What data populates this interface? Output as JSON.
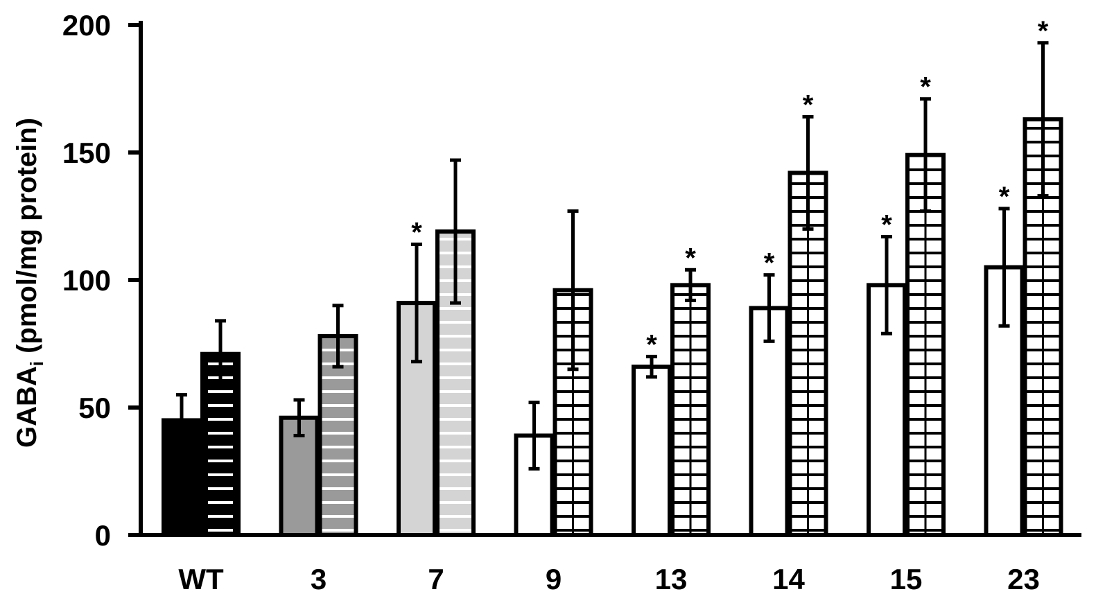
{
  "chart_data": {
    "type": "bar",
    "xlabel": "",
    "ylabel": {
      "main": "GABA",
      "subscript": "i",
      "unit": " (pmol/mg protein)"
    },
    "ylim": [
      0,
      200
    ],
    "yticks": [
      0,
      50,
      100,
      150,
      200
    ],
    "grid": false,
    "categories": [
      "WT",
      "3",
      "7",
      "9",
      "13",
      "14",
      "15",
      "23"
    ],
    "fills": [
      "#000000",
      "#9a9a9a",
      "#d4d4d4",
      "#ffffff",
      "#ffffff",
      "#ffffff",
      "#ffffff",
      "#ffffff"
    ],
    "series": [
      {
        "values": [
          45,
          46,
          91,
          39,
          66,
          89,
          98,
          105
        ],
        "errors": [
          10,
          7,
          23,
          13,
          4,
          13,
          19,
          23
        ],
        "significant": [
          false,
          false,
          true,
          false,
          true,
          true,
          true,
          true
        ]
      },
      {
        "values": [
          71,
          78,
          119,
          96,
          98,
          142,
          149,
          163
        ],
        "errors": [
          13,
          12,
          28,
          31,
          6,
          22,
          22,
          30
        ],
        "significant": [
          false,
          false,
          false,
          false,
          true,
          true,
          true,
          true
        ]
      }
    ],
    "significance_marker": "*"
  }
}
